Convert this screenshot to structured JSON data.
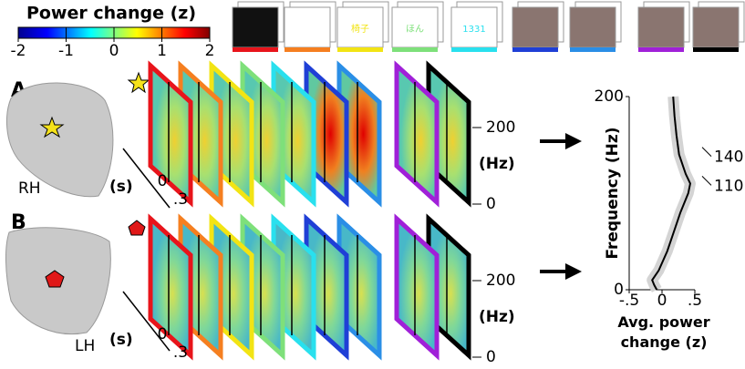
{
  "colorbar": {
    "title": "Power change (z)",
    "lim": [
      -2,
      2
    ],
    "ticks": [
      -2,
      -1,
      0,
      1,
      2
    ]
  },
  "stimuli": [
    {
      "color": "#e8141b"
    },
    {
      "color": "#f57f20"
    },
    {
      "color": "#f2e414",
      "label": "椅子"
    },
    {
      "color": "#7ee07a",
      "label": "ほん"
    },
    {
      "color": "#29e0ee",
      "label": "1331"
    },
    {
      "color": "#1f3fd6"
    },
    {
      "color": "#2a8ee6"
    },
    {
      "color": "#a020d8"
    },
    {
      "color": "#000000"
    }
  ],
  "panels": [
    {
      "label": "A",
      "hemisphere": "RH",
      "time_unit": "(s)",
      "time_ticks": [
        0,
        {
          "value": 0.3,
          "label": ".3"
        }
      ],
      "freq_unit": "(Hz)",
      "freq_ticks": [
        200,
        0
      ]
    },
    {
      "label": "B",
      "hemisphere": "LH",
      "time_unit": "(s)",
      "time_ticks": [
        0,
        {
          "value": 0.3,
          "label": ".3"
        }
      ],
      "freq_unit": "(Hz)",
      "freq_ticks": [
        200,
        0
      ]
    }
  ],
  "line_plot": {
    "ylabel": "Frequency (Hz)",
    "xlabel": "Avg. power change (z)",
    "ylim": [
      0,
      200
    ],
    "yticks": [
      0,
      200
    ],
    "xlim": [
      -0.5,
      0.5
    ],
    "xticks": [
      {
        "value": -0.5,
        "label": "-.5"
      },
      0,
      {
        "value": 0.5,
        "label": ".5"
      }
    ],
    "y": [
      200,
      180,
      160,
      140,
      120,
      110,
      100,
      80,
      60,
      40,
      20,
      10,
      5,
      0
    ],
    "x": [
      0.17,
      0.19,
      0.22,
      0.26,
      0.36,
      0.43,
      0.4,
      0.28,
      0.18,
      0.08,
      -0.05,
      -0.15,
      -0.12,
      -0.08
    ],
    "annotations": [
      140,
      110
    ]
  }
}
